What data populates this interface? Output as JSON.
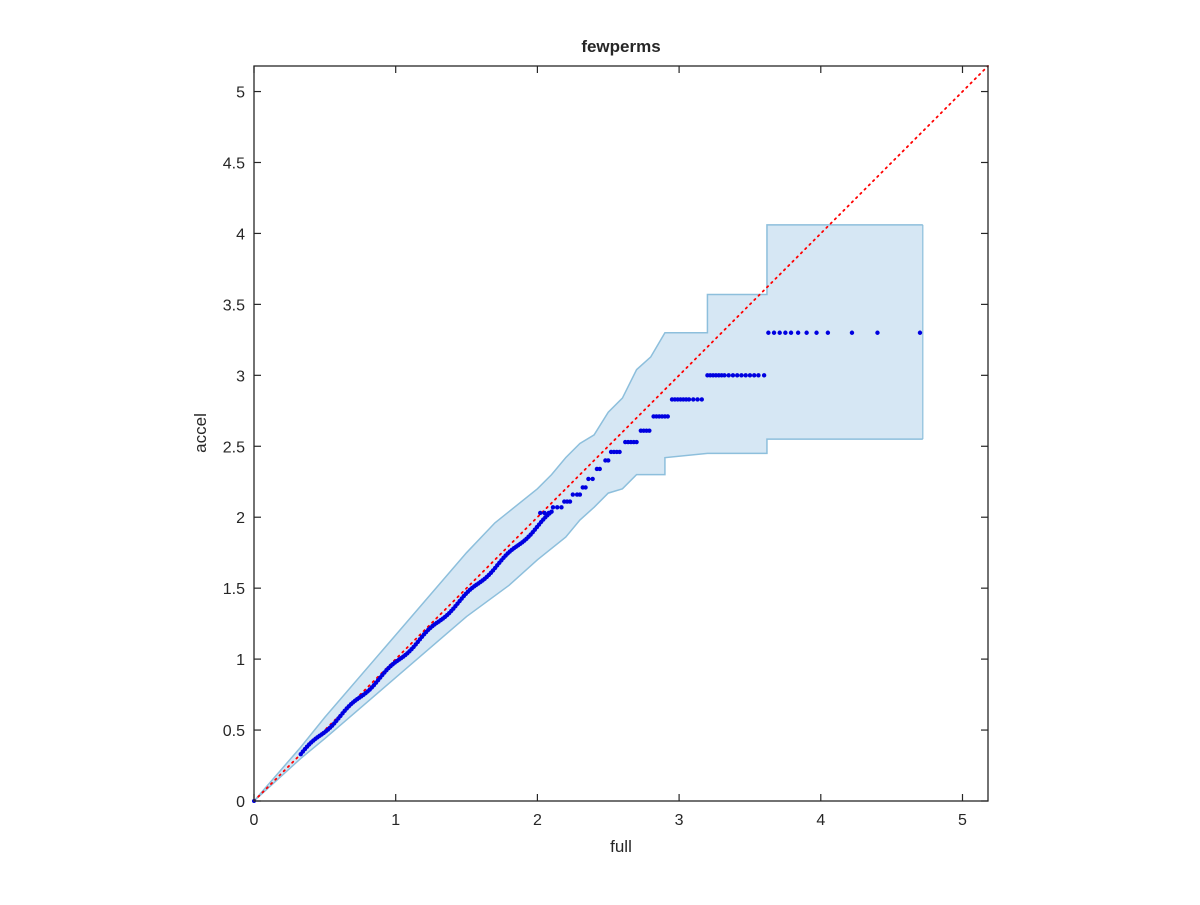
{
  "chart_data": {
    "type": "scatter",
    "title": "fewperms",
    "xlabel": "full",
    "ylabel": "accel",
    "xlim": [
      0,
      5.18
    ],
    "ylim": [
      0,
      5.18
    ],
    "xticks": [
      0,
      1,
      2,
      3,
      4,
      5
    ],
    "yticks": [
      0,
      0.5,
      1,
      1.5,
      2,
      2.5,
      3,
      3.5,
      4,
      4.5,
      5
    ],
    "xtick_labels": [
      "0",
      "1",
      "2",
      "3",
      "4",
      "5"
    ],
    "ytick_labels": [
      "0",
      "0.5",
      "1",
      "1.5",
      "2",
      "2.5",
      "3",
      "3.5",
      "4",
      "4.5",
      "5"
    ],
    "grid": false,
    "colors": {
      "points": "#0000e0",
      "diagonal": "#ff0000",
      "band_fill": "#d6e7f4",
      "band_edge": "#8dbfdc",
      "axes": "#262626"
    },
    "diagonal": {
      "from": [
        0,
        0
      ],
      "to": [
        5.18,
        5.18
      ],
      "style": "dotted"
    },
    "points": {
      "continuous_start": [
        0.33,
        0.33
      ],
      "continuous_end": [
        2.1,
        2.03
      ],
      "steps": [
        {
          "y": 2.03,
          "x": [
            2.02,
            2.05,
            2.08
          ]
        },
        {
          "y": 2.07,
          "x": [
            2.11,
            2.14,
            2.17
          ]
        },
        {
          "y": 2.11,
          "x": [
            2.19,
            2.21,
            2.23
          ]
        },
        {
          "y": 2.16,
          "x": [
            2.25,
            2.28,
            2.3
          ]
        },
        {
          "y": 2.21,
          "x": [
            2.32,
            2.34
          ]
        },
        {
          "y": 2.27,
          "x": [
            2.36,
            2.39
          ]
        },
        {
          "y": 2.34,
          "x": [
            2.42,
            2.44
          ]
        },
        {
          "y": 2.4,
          "x": [
            2.48,
            2.5
          ]
        },
        {
          "y": 2.46,
          "x": [
            2.52,
            2.54,
            2.56,
            2.58
          ]
        },
        {
          "y": 2.53,
          "x": [
            2.62,
            2.64,
            2.66,
            2.68,
            2.7
          ]
        },
        {
          "y": 2.61,
          "x": [
            2.73,
            2.75,
            2.77,
            2.79
          ]
        },
        {
          "y": 2.71,
          "x": [
            2.82,
            2.84,
            2.86,
            2.88,
            2.9,
            2.92
          ]
        },
        {
          "y": 2.83,
          "x": [
            2.95,
            2.97,
            2.99,
            3.01,
            3.03,
            3.05,
            3.07,
            3.1,
            3.13,
            3.16
          ]
        },
        {
          "y": 3.0,
          "x": [
            3.2,
            3.22,
            3.24,
            3.26,
            3.28,
            3.3,
            3.32,
            3.35,
            3.38,
            3.41,
            3.44,
            3.47,
            3.5,
            3.53,
            3.56,
            3.6
          ]
        },
        {
          "y": 3.3,
          "x": [
            3.63,
            3.67,
            3.71,
            3.75,
            3.79,
            3.84,
            3.9,
            3.97,
            4.05,
            4.22,
            4.4,
            4.7
          ]
        }
      ]
    },
    "band": {
      "upper": [
        [
          0.0,
          0.0
        ],
        [
          0.33,
          0.38
        ],
        [
          0.5,
          0.59
        ],
        [
          1.0,
          1.17
        ],
        [
          1.5,
          1.75
        ],
        [
          1.7,
          1.96
        ],
        [
          1.8,
          2.04
        ],
        [
          2.0,
          2.2
        ],
        [
          2.1,
          2.3
        ],
        [
          2.2,
          2.42
        ],
        [
          2.3,
          2.52
        ],
        [
          2.4,
          2.58
        ],
        [
          2.5,
          2.74
        ],
        [
          2.6,
          2.84
        ],
        [
          2.7,
          3.04
        ],
        [
          2.8,
          3.13
        ],
        [
          2.9,
          3.3
        ],
        [
          3.2,
          3.3
        ],
        [
          3.2,
          3.57
        ],
        [
          3.62,
          3.57
        ],
        [
          3.62,
          4.06
        ],
        [
          4.72,
          4.06
        ]
      ],
      "lower": [
        [
          0.0,
          0.0
        ],
        [
          0.33,
          0.3
        ],
        [
          0.5,
          0.44
        ],
        [
          1.0,
          0.87
        ],
        [
          1.5,
          1.3
        ],
        [
          1.8,
          1.52
        ],
        [
          2.0,
          1.7
        ],
        [
          2.2,
          1.86
        ],
        [
          2.3,
          1.98
        ],
        [
          2.4,
          2.07
        ],
        [
          2.5,
          2.17
        ],
        [
          2.6,
          2.2
        ],
        [
          2.7,
          2.3
        ],
        [
          2.9,
          2.3
        ],
        [
          2.9,
          2.42
        ],
        [
          3.2,
          2.45
        ],
        [
          3.62,
          2.45
        ],
        [
          3.62,
          2.55
        ],
        [
          4.72,
          2.55
        ]
      ]
    }
  }
}
